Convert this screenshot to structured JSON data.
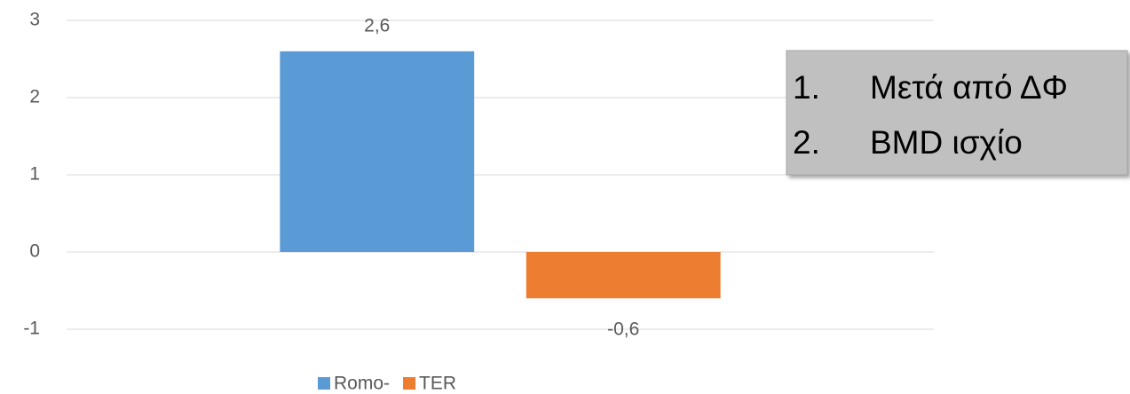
{
  "chart_data": {
    "type": "bar",
    "categories": [
      null
    ],
    "series": [
      {
        "name": "Romo-",
        "color": "#5b9bd5",
        "values": [
          2.6
        ],
        "value_labels": [
          "2,6"
        ]
      },
      {
        "name": "TER",
        "color": "#ed7d31",
        "values": [
          -0.6
        ],
        "value_labels": [
          "-0,6"
        ]
      }
    ],
    "ylim": [
      -1,
      3
    ],
    "yticks": [
      -1,
      0,
      1,
      2,
      3
    ],
    "grid": true,
    "legend": "bottom",
    "annotation": {
      "items": [
        {
          "marker": "1.",
          "text": "Μετά από ΔΦ"
        },
        {
          "marker": "2.",
          "text": "BMD ισχίο"
        }
      ]
    }
  }
}
